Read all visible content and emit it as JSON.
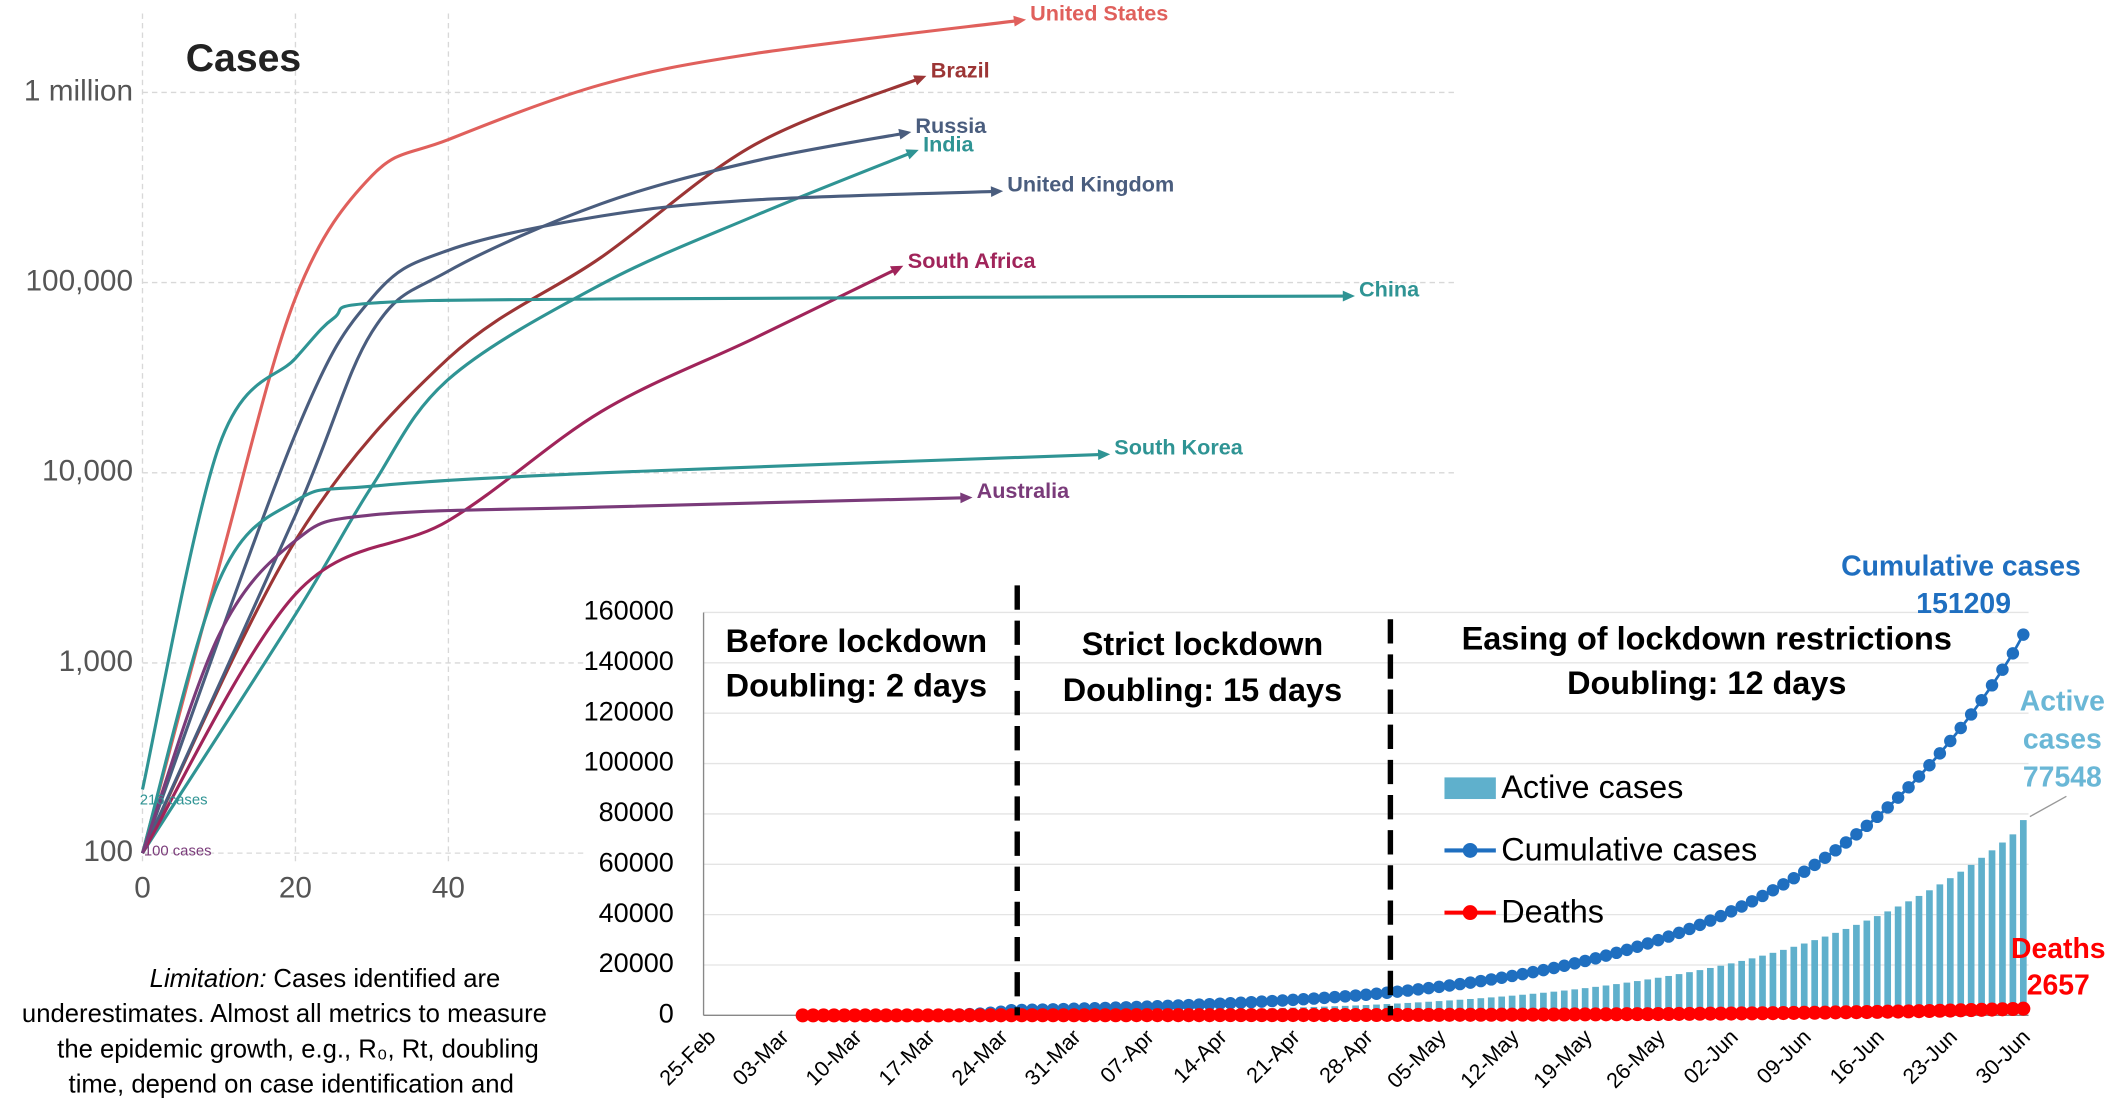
{
  "chart_data": [
    {
      "type": "line",
      "title": "Cases",
      "log_scale": true,
      "grid": true,
      "xlim": [
        0,
        172
      ],
      "xticks": [
        0,
        20,
        40
      ],
      "ylim": [
        100,
        2600000
      ],
      "yticks": [
        100,
        {
          "value": 1000,
          "label": "1,000"
        },
        {
          "value": 10000,
          "label": "10,000"
        },
        {
          "value": 100000,
          "label": "100,000"
        },
        {
          "value": 1000000,
          "label": "1 million"
        }
      ],
      "annotations": [
        "216 cases",
        "100 cases"
      ],
      "series": [
        {
          "name": "United States",
          "color": "#e0605c",
          "x": [
            0,
            10,
            20,
            30,
            40,
            60,
            80,
            115
          ],
          "values": [
            100,
            3200,
            83000,
            365000,
            565000,
            1100000,
            1600000,
            2400000
          ]
        },
        {
          "name": "Brazil",
          "color": "#9c3535",
          "x": [
            0,
            20,
            40,
            60,
            80,
            102
          ],
          "values": [
            100,
            4400,
            40000,
            136000,
            530000,
            1200000
          ]
        },
        {
          "name": "Russia",
          "color": "#4a5d7e",
          "x": [
            0,
            20,
            30,
            40,
            60,
            80,
            100
          ],
          "values": [
            100,
            6000,
            55000,
            115000,
            260000,
            435000,
            614000
          ]
        },
        {
          "name": "India",
          "color": "#2f9494",
          "x": [
            0,
            20,
            30,
            40,
            60,
            80,
            101
          ],
          "values": [
            100,
            1800,
            8500,
            31000,
            98000,
            224000,
            490000
          ]
        },
        {
          "name": "United Kingdom",
          "color": "#4a5d7e",
          "x": [
            0,
            20,
            30,
            40,
            60,
            80,
            112
          ],
          "values": [
            100,
            16000,
            83000,
            148000,
            224000,
            272000,
            302000
          ]
        },
        {
          "name": "South Africa",
          "color": "#a0245a",
          "x": [
            0,
            20,
            40,
            60,
            80,
            99
          ],
          "values": [
            100,
            2300,
            5600,
            21000,
            51000,
            120000
          ]
        },
        {
          "name": "China",
          "color": "#2f9494",
          "x": [
            0,
            10,
            20,
            25,
            30,
            60,
            158
          ],
          "values": [
            216,
            13800,
            40000,
            65000,
            78000,
            82000,
            85000
          ]
        },
        {
          "name": "South Korea",
          "color": "#2f9494",
          "x": [
            0,
            10,
            20,
            30,
            60,
            126
          ],
          "values": [
            100,
            2700,
            7100,
            8500,
            10000,
            12500
          ]
        },
        {
          "name": "Australia",
          "color": "#7a3b7a",
          "x": [
            0,
            10,
            20,
            30,
            60,
            108
          ],
          "values": [
            100,
            1400,
            4400,
            6000,
            6600,
            7400
          ]
        }
      ]
    },
    {
      "type": "combo",
      "grid": true,
      "legend": "center-right",
      "ylim": [
        0,
        160000
      ],
      "yticks": [
        0,
        20000,
        40000,
        60000,
        80000,
        100000,
        120000,
        140000,
        160000
      ],
      "phases": [
        {
          "title": "Before lockdown",
          "doubling": "Doubling: 2 days"
        },
        {
          "title": "Strict lockdown",
          "doubling": "Doubling: 15 days"
        },
        {
          "title": "Easing of lockdown restrictions",
          "doubling": "Doubling: 12 days"
        }
      ],
      "callouts": {
        "active": [
          "Active",
          "cases"
        ]
      },
      "categories": [
        "25-Feb",
        null,
        null,
        null,
        null,
        null,
        null,
        "03-Mar",
        null,
        null,
        null,
        null,
        null,
        null,
        "10-Mar",
        null,
        null,
        null,
        null,
        null,
        null,
        "17-Mar",
        null,
        null,
        null,
        null,
        null,
        null,
        "24-Mar",
        null,
        null,
        null,
        null,
        null,
        null,
        "31-Mar",
        null,
        null,
        null,
        null,
        null,
        null,
        "07-Apr",
        null,
        null,
        null,
        null,
        null,
        null,
        "14-Apr",
        null,
        null,
        null,
        null,
        null,
        null,
        "21-Apr",
        null,
        null,
        null,
        null,
        null,
        null,
        "28-Apr",
        null,
        null,
        null,
        null,
        null,
        null,
        "05-May",
        null,
        null,
        null,
        null,
        null,
        null,
        "12-May",
        null,
        null,
        null,
        null,
        null,
        null,
        "19-May",
        null,
        null,
        null,
        null,
        null,
        null,
        "26-May",
        null,
        null,
        null,
        null,
        null,
        null,
        "02-Jun",
        null,
        null,
        null,
        null,
        null,
        null,
        "09-Jun",
        null,
        null,
        null,
        null,
        null,
        null,
        "16-Jun",
        null,
        null,
        null,
        null,
        null,
        null,
        "23-Jun",
        null,
        null,
        null,
        null,
        null,
        null,
        "30-Jun"
      ],
      "series": [
        {
          "name": "Active cases",
          "type": "bar",
          "color": "#5fb0cc",
          "values": [
            null,
            null,
            null,
            null,
            null,
            null,
            null,
            null,
            null,
            1,
            2,
            2,
            3,
            4,
            6,
            8,
            12,
            16,
            23,
            32,
            46,
            64,
            91,
            128,
            181,
            256,
            362,
            512,
            724,
            1024,
            1067,
            1111,
            1157,
            1205,
            1255,
            1308,
            1362,
            1419,
            1478,
            1539,
            1603,
            1670,
            1739,
            1812,
            1887,
            1966,
            2048,
            2133,
            2222,
            2314,
            2410,
            2510,
            2615,
            2724,
            2837,
            2955,
            3078,
            3206,
            3339,
            3478,
            3623,
            3774,
            3931,
            4096,
            4290,
            4493,
            4705,
            4928,
            5161,
            5405,
            5661,
            5928,
            6209,
            6502,
            6810,
            7132,
            7469,
            7822,
            8192,
            8580,
            8985,
            9410,
            9855,
            10322,
            10810,
            11321,
            11857,
            12417,
            13004,
            13619,
            14264,
            14938,
            15645,
            16384,
            17159,
            17970,
            18820,
            19711,
            20643,
            21620,
            22642,
            23713,
            24834,
            26009,
            27239,
            28527,
            29876,
            31289,
            32768,
            34318,
            35941,
            37640,
            39421,
            41286,
            43239,
            45284,
            47426,
            49668,
            52017,
            54478,
            57055,
            59752,
            62578,
            65536,
            68636,
            71881,
            77548
          ]
        },
        {
          "name": "Cumulative cases",
          "type": "line",
          "color": "#1f6fc0",
          "values": [
            null,
            null,
            null,
            null,
            null,
            null,
            null,
            null,
            null,
            2,
            3,
            4,
            6,
            8,
            11,
            16,
            23,
            32,
            45,
            64,
            91,
            128,
            181,
            256,
            362,
            512,
            724,
            1024,
            1448,
            2048,
            2133,
            2222,
            2314,
            2410,
            2510,
            2615,
            2724,
            2837,
            2955,
            3078,
            3206,
            3339,
            3478,
            3623,
            3774,
            3931,
            4096,
            4266,
            4444,
            4628,
            4820,
            5020,
            5230,
            5448,
            5674,
            5910,
            6156,
            6412,
            6678,
            6956,
            7246,
            7548,
            7862,
            8192,
            8579,
            8985,
            9410,
            9855,
            10321,
            10810,
            11321,
            11856,
            12417,
            13004,
            13619,
            14263,
            14938,
            15644,
            16384,
            17159,
            17970,
            18820,
            19710,
            20643,
            21619,
            22641,
            23713,
            24834,
            26008,
            27238,
            28527,
            29875,
            31289,
            32768,
            34318,
            35940,
            37640,
            39421,
            41285,
            43239,
            45283,
            47425,
            49668,
            52017,
            54477,
            57054,
            59751,
            62577,
            65536,
            68636,
            71881,
            75280,
            78841,
            82571,
            86477,
            90567,
            94851,
            99336,
            104034,
            108955,
            114109,
            119503,
            125155,
            131072,
            137272,
            143762,
            151209
          ]
        },
        {
          "name": "Deaths",
          "type": "line",
          "color": "#ff0000",
          "values": [
            null,
            null,
            null,
            null,
            null,
            null,
            null,
            null,
            null,
            0,
            0,
            0,
            0,
            0,
            0,
            0,
            0,
            1,
            1,
            1,
            2,
            2,
            3,
            4,
            6,
            9,
            13,
            18,
            25,
            36,
            37,
            39,
            41,
            42,
            44,
            46,
            48,
            50,
            52,
            54,
            56,
            59,
            61,
            64,
            66,
            69,
            72,
            75,
            78,
            81,
            85,
            88,
            92,
            96,
            100,
            104,
            108,
            112,
            117,
            122,
            127,
            132,
            138,
            144,
            151,
            158,
            165,
            173,
            181,
            190,
            199,
            208,
            218,
            228,
            239,
            250,
            262,
            274,
            287,
            301,
            315,
            330,
            346,
            362,
            379,
            397,
            416,
            436,
            456,
            478,
            500,
            524,
            549,
            575,
            602,
            631,
            660,
            692,
            724,
            759,
            794,
            832,
            871,
            913,
            956,
            1001,
            1048,
            1098,
            1150,
            1204,
            1261,
            1321,
            1383,
            1449,
            1517,
            1589,
            1664,
            1743,
            1825,
            1911,
            2002,
            2097,
            2196,
            2300,
            2408,
            2522,
            2657
          ]
        }
      ]
    }
  ],
  "caption": {
    "label": "Limitation:",
    "lines": [
      "Cases identified are",
      "underestimates. Almost all metrics to measure",
      "the epidemic growth, e.g., R₀, Rt, doubling",
      "time, depend on case identification and"
    ]
  }
}
